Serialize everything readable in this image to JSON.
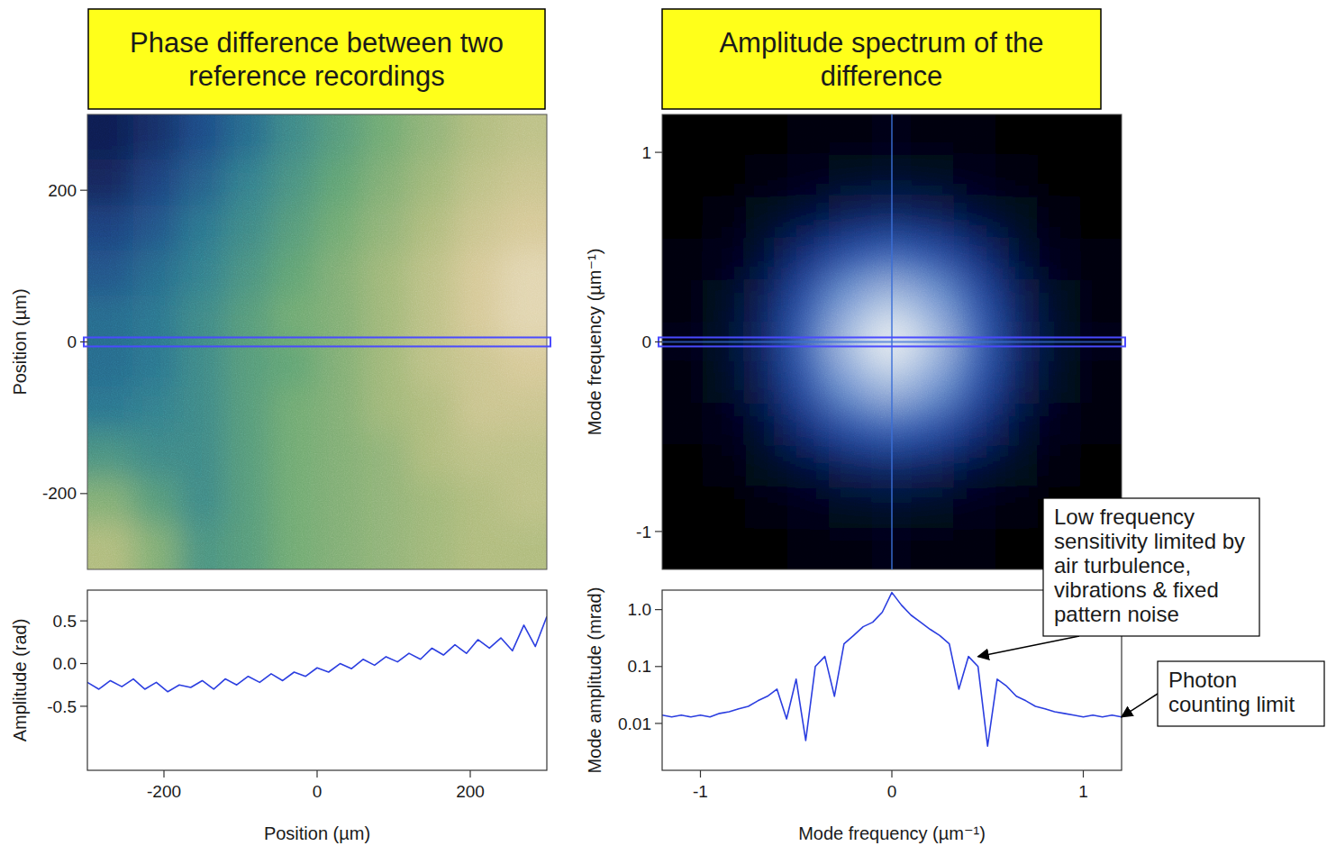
{
  "chart_data": [
    {
      "type": "heatmap",
      "title": "Phase difference between two reference recordings",
      "y_label": "Position (µm)",
      "xlim": [
        -300,
        300
      ],
      "ylim": [
        -300,
        300
      ],
      "yticks": [
        -200,
        0,
        200
      ],
      "tick_labels": "y",
      "x": [
        -270,
        -210,
        -150,
        -90,
        -30,
        30,
        90,
        150,
        210,
        270
      ],
      "y": [
        270,
        210,
        150,
        90,
        30,
        -30,
        -90,
        -150,
        -210,
        -270
      ],
      "cells": [
        [
          -0.7,
          -0.6,
          -0.45,
          -0.3,
          -0.15,
          -0.05,
          0.05,
          0.15,
          0.25,
          0.3
        ],
        [
          -0.65,
          -0.5,
          -0.35,
          -0.2,
          -0.1,
          0,
          0.1,
          0.2,
          0.3,
          0.35
        ],
        [
          -0.5,
          -0.4,
          -0.25,
          -0.15,
          -0.05,
          0.05,
          0.15,
          0.25,
          0.35,
          0.4
        ],
        [
          -0.4,
          -0.3,
          -0.2,
          -0.1,
          0,
          0.1,
          0.2,
          0.3,
          0.4,
          0.45
        ],
        [
          -0.3,
          -0.25,
          -0.15,
          -0.05,
          0.05,
          0.1,
          0.2,
          0.3,
          0.4,
          0.45
        ],
        [
          -0.3,
          -0.25,
          -0.15,
          -0.05,
          0,
          0.1,
          0.2,
          0.3,
          0.35,
          0.4
        ],
        [
          -0.25,
          -0.2,
          -0.15,
          -0.05,
          0.05,
          0.1,
          0.2,
          0.25,
          0.35,
          0.35
        ],
        [
          -0.1,
          -0.15,
          -0.15,
          -0.05,
          0.05,
          0.1,
          0.15,
          0.25,
          0.3,
          0.3
        ],
        [
          0.1,
          -0.05,
          -0.15,
          -0.05,
          0.05,
          0.1,
          0.15,
          0.2,
          0.25,
          0.3
        ],
        [
          0.25,
          0.1,
          -0.1,
          -0.05,
          0.05,
          0.1,
          0.15,
          0.2,
          0.25,
          0.25
        ]
      ],
      "zlim": [
        -0.7,
        0.5
      ]
    },
    {
      "type": "line",
      "x_label": "Position (µm)",
      "y_label": "Amplitude (rad)",
      "xlim": [
        -300,
        300
      ],
      "xticks": [
        -200,
        0,
        200
      ],
      "ylim": [
        -1.25,
        0.86
      ],
      "yticks": [
        -0.5,
        {
          "value": 0,
          "label": "0.0"
        },
        0.5
      ],
      "x": [
        -300,
        -285,
        -270,
        -255,
        -240,
        -225,
        -210,
        -195,
        -180,
        -165,
        -150,
        -135,
        -120,
        -105,
        -90,
        -75,
        -60,
        -45,
        -30,
        -15,
        0,
        15,
        30,
        45,
        60,
        75,
        90,
        105,
        120,
        135,
        150,
        165,
        180,
        195,
        210,
        225,
        240,
        255,
        270,
        285,
        300
      ],
      "series": [
        {
          "color": "#2b3ee0",
          "values": [
            -0.22,
            -0.3,
            -0.2,
            -0.27,
            -0.18,
            -0.3,
            -0.22,
            -0.33,
            -0.25,
            -0.28,
            -0.2,
            -0.3,
            -0.18,
            -0.25,
            -0.15,
            -0.22,
            -0.12,
            -0.2,
            -0.1,
            -0.15,
            -0.05,
            -0.1,
            0.0,
            -0.06,
            0.05,
            -0.02,
            0.08,
            0.02,
            0.12,
            0.05,
            0.18,
            0.1,
            0.22,
            0.12,
            0.28,
            0.18,
            0.3,
            0.15,
            0.45,
            0.2,
            0.55
          ]
        }
      ]
    },
    {
      "type": "heatmap",
      "title": "Amplitude spectrum of the difference",
      "y_label": "Mode frequency (µm⁻¹)",
      "xlim": [
        -1.2,
        1.2
      ],
      "ylim": [
        -1.2,
        1.2
      ],
      "yticks": [
        -1,
        0,
        1
      ],
      "tick_labels": "y",
      "x": [
        -1.091,
        -0.873,
        -0.655,
        -0.436,
        -0.218,
        0,
        0.218,
        0.436,
        0.655,
        0.873,
        1.091
      ],
      "y": [
        1.091,
        0.873,
        0.655,
        0.436,
        0.218,
        0,
        -0.218,
        -0.436,
        -0.655,
        -0.873,
        -1.091
      ],
      "cells": [
        [
          0.01,
          0.01,
          0.011,
          0.012,
          0.014,
          0.016,
          0.014,
          0.012,
          0.011,
          0.01,
          0.01
        ],
        [
          0.01,
          0.011,
          0.013,
          0.016,
          0.02,
          0.025,
          0.02,
          0.016,
          0.013,
          0.011,
          0.01
        ],
        [
          0.011,
          0.013,
          0.02,
          0.035,
          0.05,
          0.06,
          0.05,
          0.035,
          0.02,
          0.013,
          0.011
        ],
        [
          0.012,
          0.016,
          0.035,
          0.08,
          0.15,
          0.2,
          0.15,
          0.08,
          0.035,
          0.016,
          0.012
        ],
        [
          0.014,
          0.02,
          0.05,
          0.15,
          0.4,
          0.6,
          0.4,
          0.15,
          0.05,
          0.02,
          0.014
        ],
        [
          0.016,
          0.025,
          0.06,
          0.2,
          0.6,
          1.2,
          0.6,
          0.2,
          0.06,
          0.025,
          0.016
        ],
        [
          0.014,
          0.02,
          0.05,
          0.15,
          0.4,
          0.6,
          0.4,
          0.15,
          0.05,
          0.02,
          0.014
        ],
        [
          0.012,
          0.016,
          0.035,
          0.08,
          0.15,
          0.2,
          0.15,
          0.08,
          0.035,
          0.016,
          0.012
        ],
        [
          0.011,
          0.013,
          0.02,
          0.035,
          0.05,
          0.06,
          0.05,
          0.035,
          0.02,
          0.013,
          0.011
        ],
        [
          0.01,
          0.011,
          0.013,
          0.016,
          0.02,
          0.025,
          0.02,
          0.016,
          0.013,
          0.011,
          0.01
        ],
        [
          0.01,
          0.01,
          0.011,
          0.012,
          0.014,
          0.016,
          0.014,
          0.012,
          0.011,
          0.01,
          0.01
        ]
      ],
      "zlim": [
        0.01,
        1.2
      ]
    },
    {
      "type": "line",
      "x_label": "Mode frequency (µm⁻¹)",
      "y_label": "Mode amplitude (mrad)",
      "log": "y",
      "xlim": [
        -1.2,
        1.2
      ],
      "xticks": [
        -1,
        0,
        1
      ],
      "ylim": [
        0.0015,
        2.2
      ],
      "yticks": [
        0.01,
        0.1,
        {
          "value": 1,
          "label": "1.0"
        }
      ],
      "x": [
        -1.2,
        -1.15,
        -1.1,
        -1.05,
        -1,
        -0.95,
        -0.9,
        -0.85,
        -0.8,
        -0.75,
        -0.7,
        -0.65,
        -0.6,
        -0.55,
        -0.5,
        -0.45,
        -0.4,
        -0.35,
        -0.3,
        -0.25,
        -0.2,
        -0.15,
        -0.1,
        -0.05,
        0,
        0.05,
        0.1,
        0.15,
        0.2,
        0.25,
        0.3,
        0.35,
        0.4,
        0.45,
        0.5,
        0.55,
        0.6,
        0.65,
        0.7,
        0.75,
        0.8,
        0.85,
        0.9,
        0.95,
        1,
        1.05,
        1.1,
        1.15,
        1.2
      ],
      "series": [
        {
          "color": "#2b3ee0",
          "values": [
            0.014,
            0.013,
            0.014,
            0.013,
            0.014,
            0.013,
            0.015,
            0.016,
            0.018,
            0.02,
            0.025,
            0.03,
            0.04,
            0.012,
            0.06,
            0.005,
            0.1,
            0.15,
            0.03,
            0.25,
            0.35,
            0.5,
            0.6,
            0.9,
            2.0,
            1.2,
            0.8,
            0.6,
            0.45,
            0.35,
            0.25,
            0.04,
            0.15,
            0.1,
            0.004,
            0.06,
            0.045,
            0.03,
            0.025,
            0.02,
            0.018,
            0.016,
            0.015,
            0.014,
            0.013,
            0.014,
            0.013,
            0.014,
            0.013
          ]
        }
      ],
      "annotations": [
        {
          "text": "Low frequency sensitivity limited by air turbulence, vibrations & fixed pattern noise",
          "x": 0.45,
          "y": 0.15
        },
        {
          "text": "Photon counting limit",
          "x": 1.2,
          "y": 0.013
        }
      ]
    }
  ]
}
